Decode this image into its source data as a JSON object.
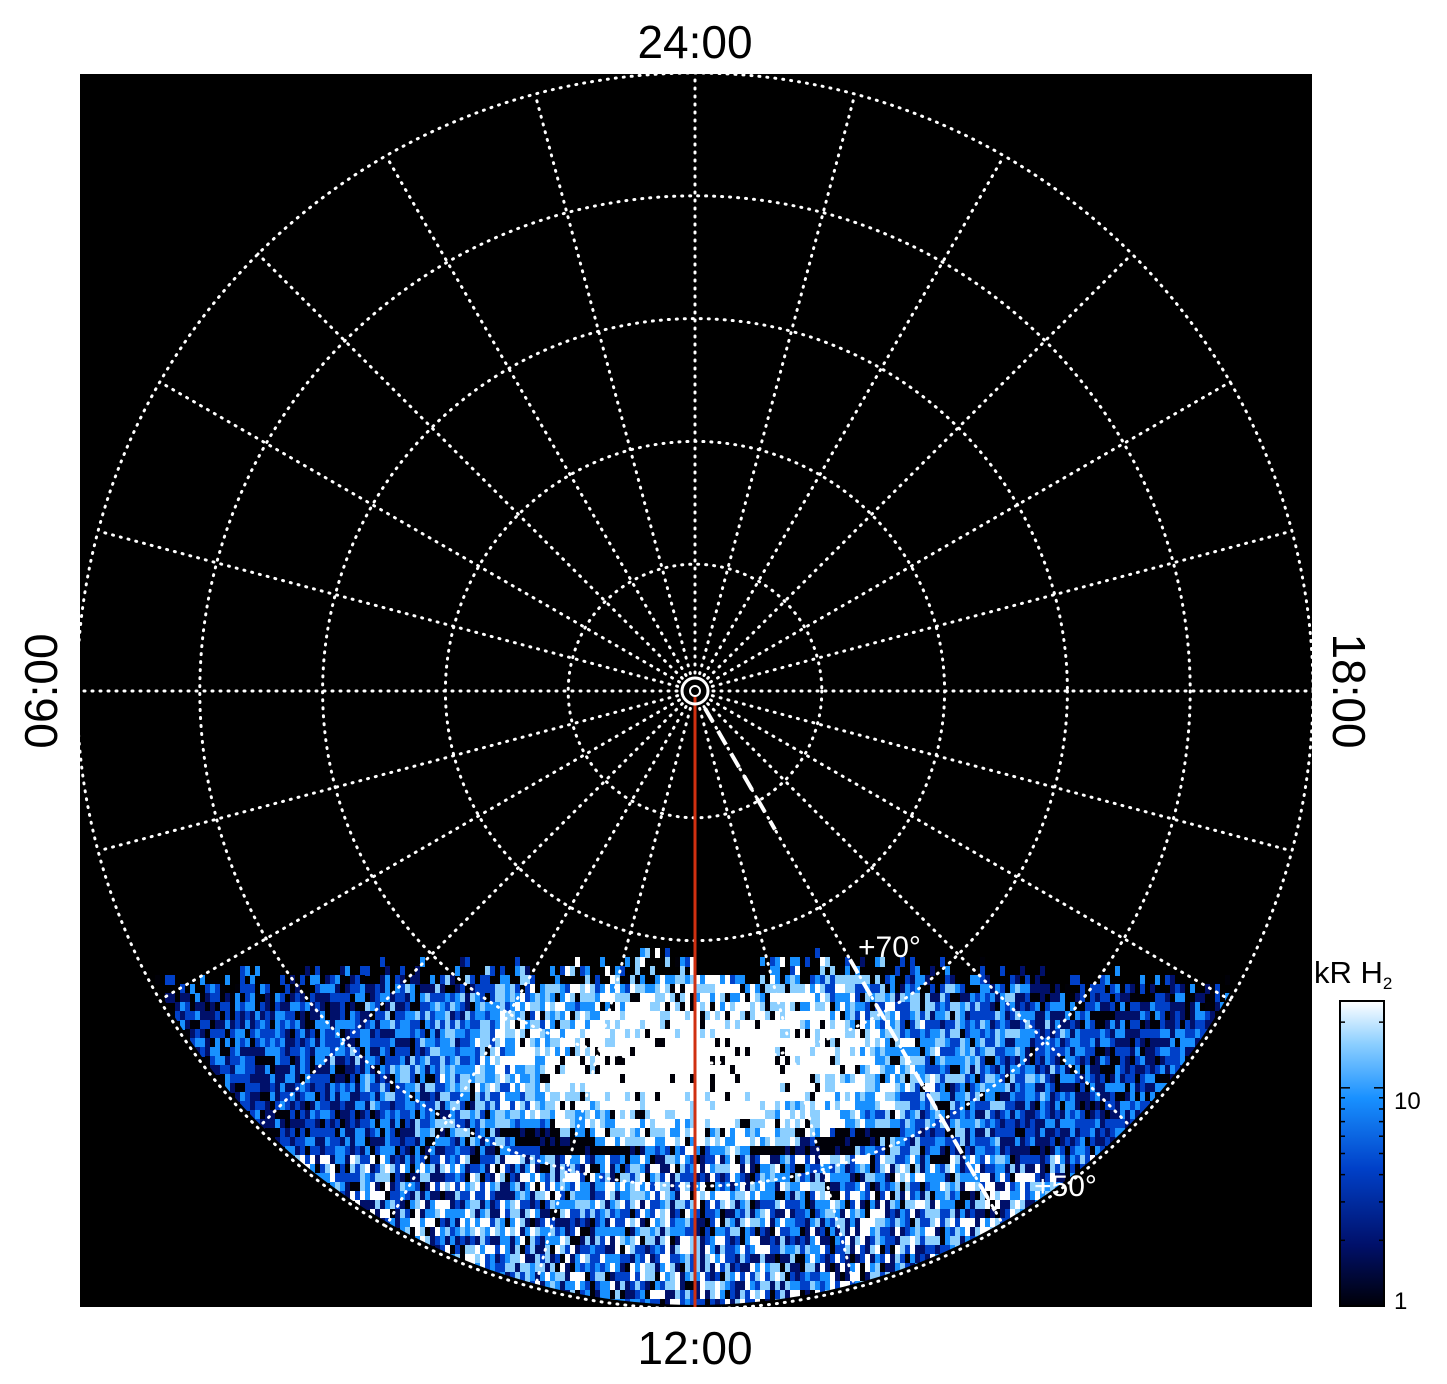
{
  "chart_data": {
    "type": "heatmap",
    "projection": "polar",
    "title": "",
    "local_time_labels": {
      "top": "24:00",
      "left": "06:00",
      "right": "18:00",
      "bottom": "12:00"
    },
    "latitude_labels": [
      "+70°",
      "+50°"
    ],
    "grid": {
      "latitude_circles_deg": [
        80,
        70,
        60,
        50,
        40
      ],
      "meridian_step_hours": 1,
      "style": "dotted",
      "color": "#ffffff"
    },
    "data_coverage": "lower part of disk (near 12:00 local time)",
    "reference_lines": [
      {
        "kind": "solid",
        "color": "#d03010",
        "from_lt": "12:00",
        "description": "red meridian"
      },
      {
        "kind": "dashed",
        "color": "#ffffff",
        "lt": "14:00"
      }
    ],
    "colorbar": {
      "title_main": "kR H",
      "title_sub": "2",
      "scale": "log",
      "ticks": [
        {
          "value": 1,
          "label": "1"
        },
        {
          "value": 10,
          "label": "10"
        }
      ],
      "range": [
        1,
        25
      ],
      "colors": [
        "#000008",
        "#00106a",
        "#0040c8",
        "#1890ff",
        "#8ccfff",
        "#ffffff"
      ]
    }
  }
}
